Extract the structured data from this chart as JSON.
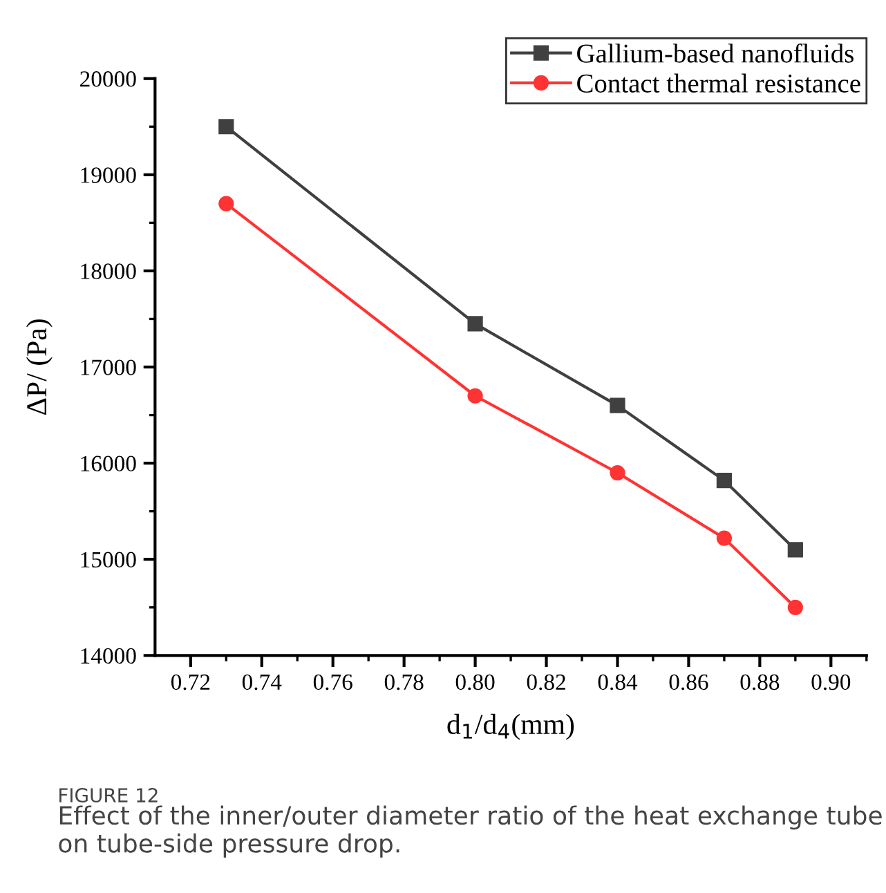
{
  "chart_data": {
    "type": "line",
    "x": [
      0.73,
      0.8,
      0.84,
      0.87,
      0.89
    ],
    "series": [
      {
        "name": "Gallium-based nanofluids",
        "color": "#404040",
        "marker": "square",
        "values": [
          19500,
          17450,
          16600,
          15820,
          15100
        ]
      },
      {
        "name": "Contact thermal resistance",
        "color": "#ff3333",
        "marker": "circle",
        "values": [
          18700,
          16700,
          15900,
          15220,
          14500
        ]
      }
    ],
    "xlabel": "d$_{1}$/d$_{4}$(mm)",
    "ylabel": "ΔP/ (Pa)",
    "xlim": [
      0.71,
      0.91
    ],
    "xticks": [
      {
        "value": 0.72,
        "label": "0.72"
      },
      {
        "value": 0.74,
        "label": "0.74"
      },
      {
        "value": 0.76,
        "label": "0.76"
      },
      {
        "value": 0.78,
        "label": "0.78"
      },
      {
        "value": 0.8,
        "label": "0.80"
      },
      {
        "value": 0.82,
        "label": "0.82"
      },
      {
        "value": 0.84,
        "label": "0.84"
      },
      {
        "value": 0.86,
        "label": "0.86"
      },
      {
        "value": 0.88,
        "label": "0.88"
      },
      {
        "value": 0.9,
        "label": "0.90"
      }
    ],
    "ylim": [
      14000,
      20000
    ],
    "yticks": [
      14000,
      15000,
      16000,
      17000,
      18000,
      19000,
      20000
    ],
    "legend": "top right",
    "grid": false,
    "line_style": "solid",
    "annotations": [
      "FIGURE 12",
      "Effect of the inner/outer diameter ratio of the heat exchange tube on tube-side pressure drop."
    ]
  }
}
